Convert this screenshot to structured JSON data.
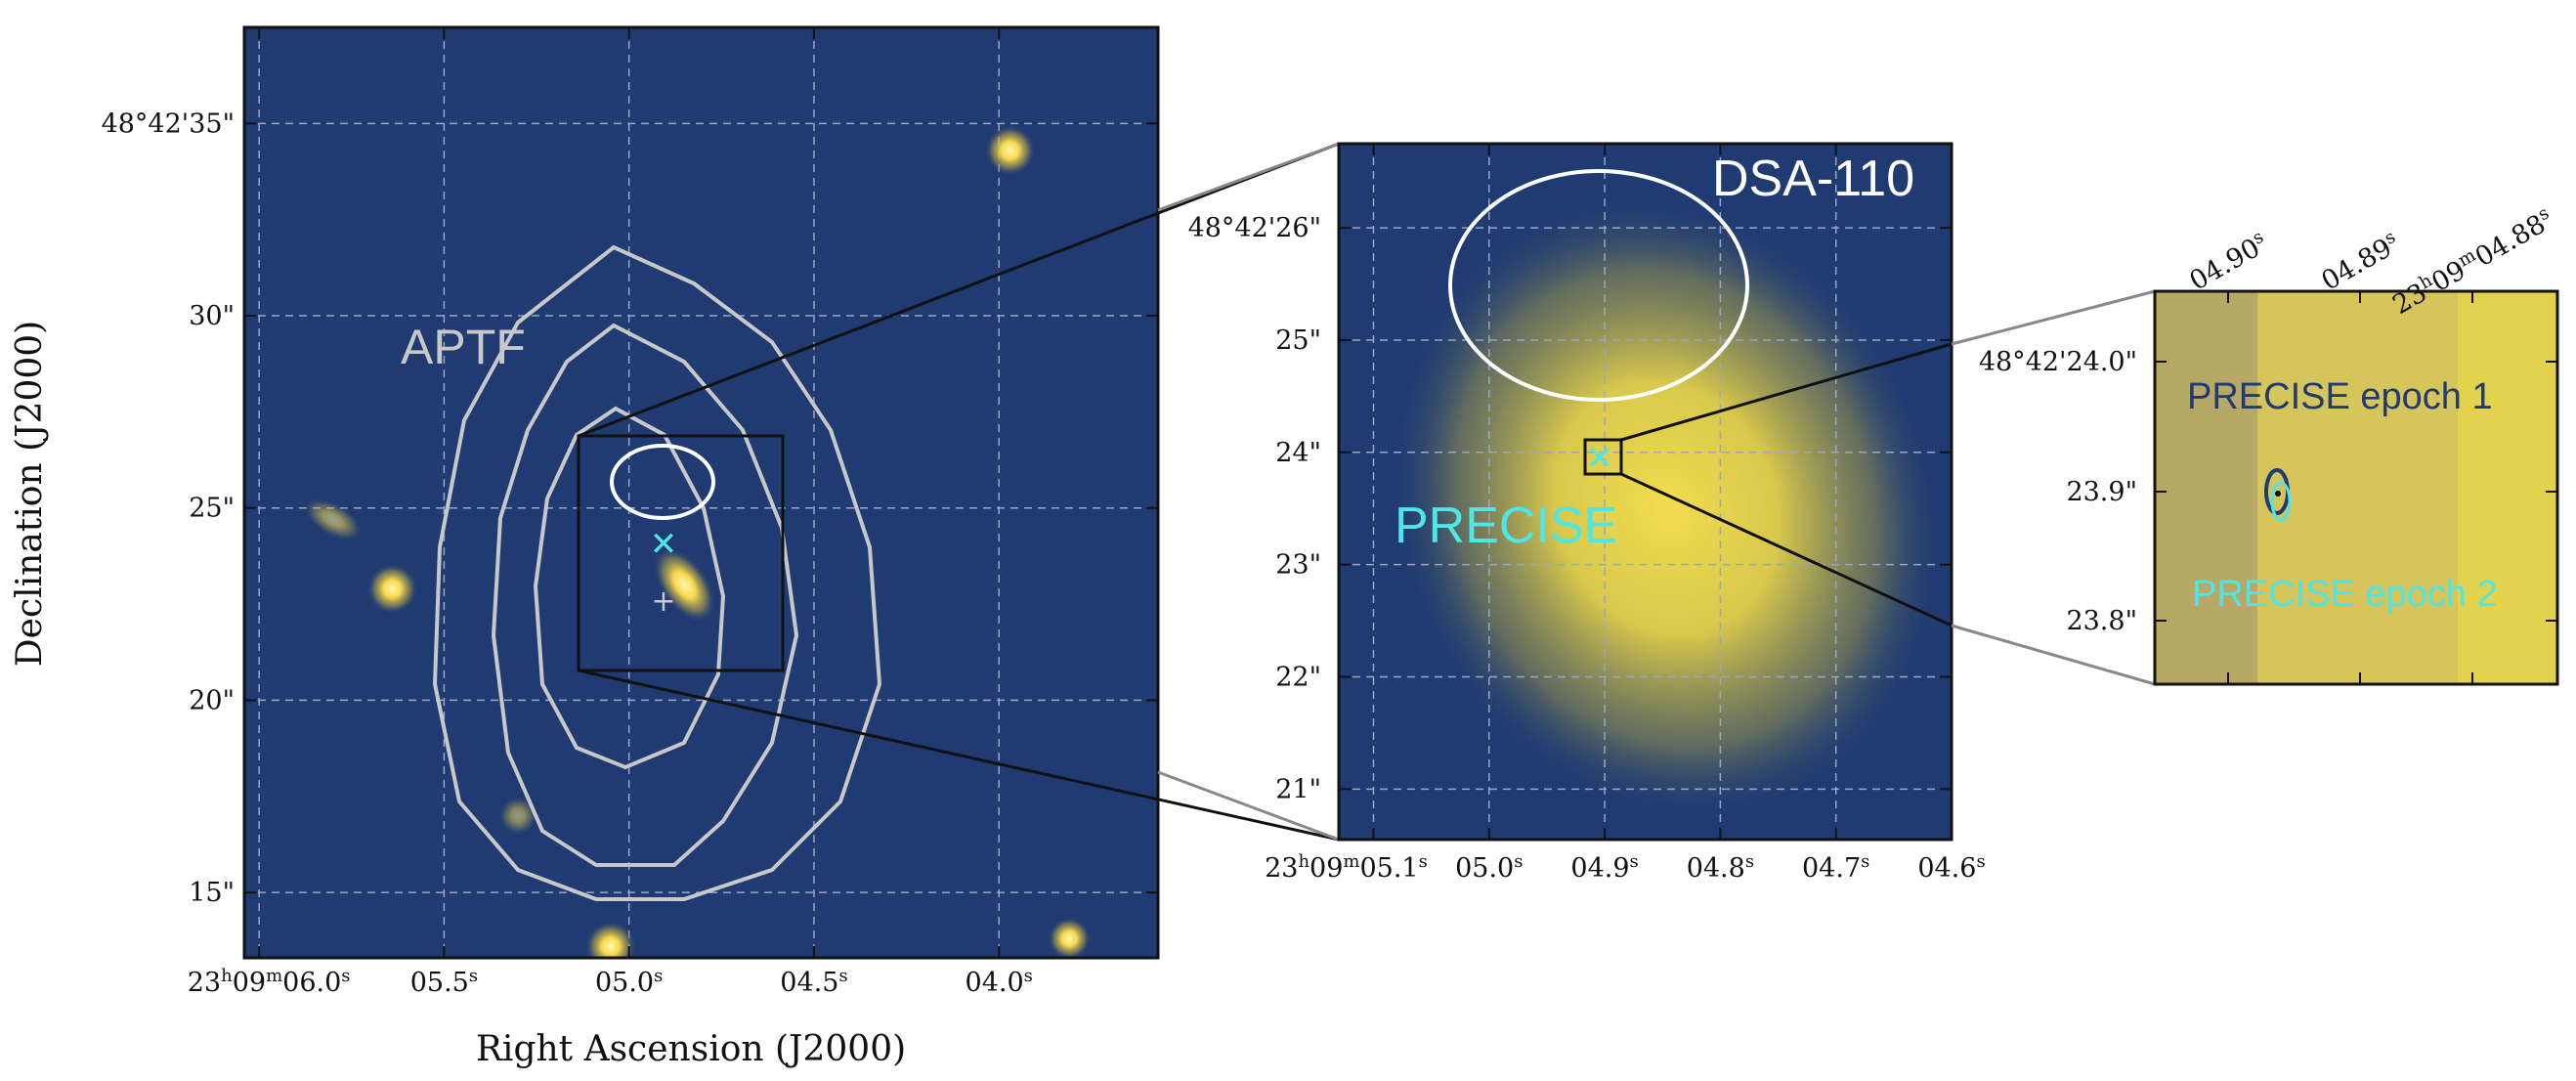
{
  "colors": {
    "background": "#1f3b72",
    "galaxy": "#f6e05a",
    "contour": "#c8c8c8",
    "dsa_ellipse": "#ffffff",
    "precise": "#4ee6e6",
    "epoch1": "#1f3b72",
    "inset_bg": "#d4c25a"
  },
  "chart_data": [
    {
      "type": "scatter",
      "panel": "left",
      "xlabel": "Right Ascension (J2000)",
      "ylabel": "Declination (J2000)",
      "xlim_sec": [
        6.04,
        3.57
      ],
      "ylim_arcsec": [
        13.3,
        37.5
      ],
      "x_tick_labels": [
        {
          "value": 6.0,
          "label": "23h09m06.0s"
        },
        {
          "value": 5.5,
          "label": "05.5s"
        },
        {
          "value": 5.0,
          "label": "05.0s"
        },
        {
          "value": 4.5,
          "label": "04.5s"
        },
        {
          "value": 4.0,
          "label": "04.0s"
        }
      ],
      "y_tick_labels": [
        {
          "value": 35,
          "label": "48°42'35\""
        },
        {
          "value": 30,
          "label": "30\""
        },
        {
          "value": 25,
          "label": "25\""
        },
        {
          "value": 20,
          "label": "20\""
        },
        {
          "value": 15,
          "label": "15\""
        }
      ],
      "grid": true,
      "annotations": [
        "APTF"
      ],
      "sources": [
        {
          "x": 3.97,
          "y": 34.3
        },
        {
          "x": 5.64,
          "y": 22.9
        },
        {
          "x": 5.05,
          "y": 13.6
        },
        {
          "x": 3.81,
          "y": 13.8
        },
        {
          "x": 4.85,
          "y": 23.0
        },
        {
          "x": 5.3,
          "y": 17.0
        },
        {
          "x": 5.8,
          "y": 24.7
        }
      ],
      "markers": [
        {
          "name": "PRECISE",
          "x": 4.895,
          "y": 23.9,
          "shape": "x"
        },
        {
          "name": "center",
          "x": 4.895,
          "y": 22.2,
          "shape": "+"
        }
      ],
      "zoom_box": {
        "x": [
          5.12,
          4.57
        ],
        "y": [
          20.6,
          26.8
        ]
      }
    },
    {
      "type": "scatter",
      "panel": "middle",
      "annotations": [
        "DSA-110",
        "PRECISE"
      ],
      "xlim_sec": [
        5.13,
        4.6
      ],
      "ylim_arcsec": [
        20.55,
        26.75
      ],
      "x_tick_labels": [
        {
          "value": 5.1,
          "label": "23h09m05.1s"
        },
        {
          "value": 5.0,
          "label": "05.0s"
        },
        {
          "value": 4.9,
          "label": "04.9s"
        },
        {
          "value": 4.8,
          "label": "04.8s"
        },
        {
          "value": 4.7,
          "label": "04.7s"
        },
        {
          "value": 4.6,
          "label": "04.6s"
        }
      ],
      "y_tick_labels": [
        {
          "value": 26,
          "label": "48°42'26\""
        },
        {
          "value": 25,
          "label": "25\""
        },
        {
          "value": 24,
          "label": "24\""
        },
        {
          "value": 23,
          "label": "23\""
        },
        {
          "value": 22,
          "label": "22\""
        },
        {
          "value": 21,
          "label": "21\""
        }
      ],
      "grid": true,
      "markers": [
        {
          "name": "PRECISE",
          "x": 4.9,
          "y": 23.9,
          "shape": "x"
        }
      ],
      "zoom_box": {
        "x": [
          4.913,
          4.887
        ],
        "y": [
          23.75,
          24.05
        ]
      }
    },
    {
      "type": "scatter",
      "panel": "right",
      "annotations": [
        "PRECISE epoch 1",
        "PRECISE epoch 2"
      ],
      "x_tick_labels": [
        {
          "value": 4.9,
          "label": "04.90s"
        },
        {
          "value": 4.89,
          "label": "04.89s"
        },
        {
          "value": 4.88,
          "label": "23h09m04.88s"
        }
      ],
      "y_tick_labels": [
        {
          "value": 24.0,
          "label": "48°42'24.0\""
        },
        {
          "value": 23.9,
          "label": "23.9\""
        },
        {
          "value": 23.8,
          "label": "23.8\""
        }
      ],
      "grid": false,
      "epochs": [
        {
          "name": "PRECISE epoch 1",
          "x": 4.898,
          "y": 23.9
        },
        {
          "name": "PRECISE epoch 2",
          "x": 4.897,
          "y": 23.895
        }
      ]
    }
  ],
  "text": {
    "ra_h_left": "23",
    "ra_m_left": "09",
    "ra_s_left": "06.0",
    "ra_h_mid": "23",
    "ra_m_mid": "09",
    "ra_s_mid": "05.1",
    "ra_h_right": "23",
    "ra_m_right": "09",
    "ra_s_right": "04.88"
  }
}
